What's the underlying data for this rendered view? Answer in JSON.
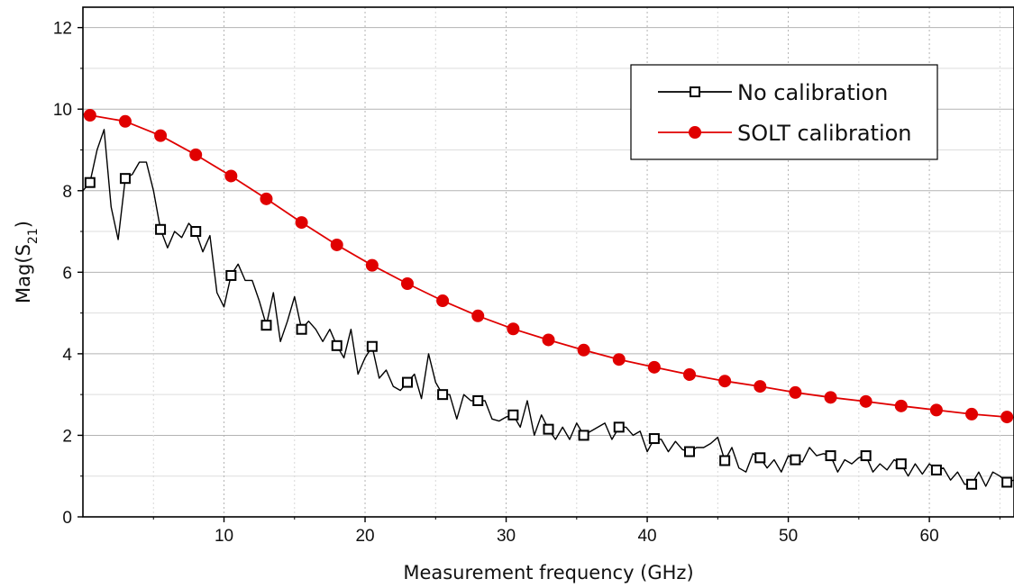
{
  "chart_data": {
    "type": "line",
    "xlabel": "Measurement frequency (GHz)",
    "ylabel": {
      "text": "Mag(S",
      "sub": "21",
      "close": ")"
    },
    "xlim": [
      0,
      66
    ],
    "ylim": [
      0,
      12.5
    ],
    "x_ticks": [
      10,
      20,
      30,
      40,
      50,
      60
    ],
    "y_ticks": [
      0,
      2,
      4,
      6,
      8,
      10,
      12
    ],
    "grid": true,
    "legend_position": "top-right",
    "series": [
      {
        "name": "No calibration",
        "color": "#000000",
        "marker": "open-square",
        "markers": [
          [
            0.5,
            8.2
          ],
          [
            3.0,
            8.3
          ],
          [
            5.5,
            7.05
          ],
          [
            8.0,
            7.0
          ],
          [
            10.5,
            5.92
          ],
          [
            13.0,
            4.7
          ],
          [
            15.5,
            4.6
          ],
          [
            18.0,
            4.2
          ],
          [
            20.5,
            4.18
          ],
          [
            23.0,
            3.3
          ],
          [
            25.5,
            3.0
          ],
          [
            28.0,
            2.85
          ],
          [
            30.5,
            2.5
          ],
          [
            33.0,
            2.15
          ],
          [
            35.5,
            2.0
          ],
          [
            38.0,
            2.2
          ],
          [
            40.5,
            1.92
          ],
          [
            43.0,
            1.6
          ],
          [
            45.5,
            1.38
          ],
          [
            48.0,
            1.45
          ],
          [
            50.5,
            1.4
          ],
          [
            53.0,
            1.5
          ],
          [
            55.5,
            1.5
          ],
          [
            58.0,
            1.3
          ],
          [
            60.5,
            1.15
          ],
          [
            63.0,
            0.8
          ],
          [
            65.5,
            0.85
          ]
        ],
        "values": [
          [
            0.0,
            8.0
          ],
          [
            0.5,
            8.2
          ],
          [
            1.0,
            9.0
          ],
          [
            1.5,
            9.5
          ],
          [
            2.0,
            7.6
          ],
          [
            2.5,
            6.8
          ],
          [
            3.0,
            8.3
          ],
          [
            3.5,
            8.4
          ],
          [
            4.0,
            8.7
          ],
          [
            4.5,
            8.7
          ],
          [
            5.0,
            8.0
          ],
          [
            5.5,
            7.05
          ],
          [
            6.0,
            6.6
          ],
          [
            6.5,
            7.0
          ],
          [
            7.0,
            6.85
          ],
          [
            7.5,
            7.2
          ],
          [
            8.0,
            7.0
          ],
          [
            8.5,
            6.5
          ],
          [
            9.0,
            6.9
          ],
          [
            9.5,
            5.5
          ],
          [
            10.0,
            5.15
          ],
          [
            10.5,
            5.92
          ],
          [
            11.0,
            6.2
          ],
          [
            11.5,
            5.8
          ],
          [
            12.0,
            5.8
          ],
          [
            12.5,
            5.3
          ],
          [
            13.0,
            4.7
          ],
          [
            13.5,
            5.5
          ],
          [
            14.0,
            4.3
          ],
          [
            14.5,
            4.8
          ],
          [
            15.0,
            5.4
          ],
          [
            15.5,
            4.6
          ],
          [
            16.0,
            4.8
          ],
          [
            16.5,
            4.6
          ],
          [
            17.0,
            4.3
          ],
          [
            17.5,
            4.6
          ],
          [
            18.0,
            4.2
          ],
          [
            18.5,
            3.9
          ],
          [
            19.0,
            4.6
          ],
          [
            19.5,
            3.5
          ],
          [
            20.0,
            3.9
          ],
          [
            20.5,
            4.18
          ],
          [
            21.0,
            3.4
          ],
          [
            21.5,
            3.6
          ],
          [
            22.0,
            3.2
          ],
          [
            22.5,
            3.1
          ],
          [
            23.0,
            3.3
          ],
          [
            23.5,
            3.5
          ],
          [
            24.0,
            2.9
          ],
          [
            24.5,
            4.0
          ],
          [
            25.0,
            3.3
          ],
          [
            25.5,
            3.0
          ],
          [
            26.0,
            3.0
          ],
          [
            26.5,
            2.4
          ],
          [
            27.0,
            3.0
          ],
          [
            27.5,
            2.85
          ],
          [
            28.0,
            2.85
          ],
          [
            28.5,
            2.85
          ],
          [
            29.0,
            2.4
          ],
          [
            29.5,
            2.35
          ],
          [
            30.0,
            2.45
          ],
          [
            30.5,
            2.5
          ],
          [
            31.0,
            2.2
          ],
          [
            31.5,
            2.85
          ],
          [
            32.0,
            2.0
          ],
          [
            32.5,
            2.5
          ],
          [
            33.0,
            2.15
          ],
          [
            33.5,
            1.9
          ],
          [
            34.0,
            2.2
          ],
          [
            34.5,
            1.9
          ],
          [
            35.0,
            2.3
          ],
          [
            35.5,
            2.0
          ],
          [
            36.0,
            2.1
          ],
          [
            36.5,
            2.2
          ],
          [
            37.0,
            2.3
          ],
          [
            37.5,
            1.9
          ],
          [
            38.0,
            2.2
          ],
          [
            38.5,
            2.2
          ],
          [
            39.0,
            2.0
          ],
          [
            39.5,
            2.1
          ],
          [
            40.0,
            1.6
          ],
          [
            40.5,
            1.92
          ],
          [
            41.0,
            1.9
          ],
          [
            41.5,
            1.6
          ],
          [
            42.0,
            1.85
          ],
          [
            42.5,
            1.65
          ],
          [
            43.0,
            1.6
          ],
          [
            43.5,
            1.7
          ],
          [
            44.0,
            1.7
          ],
          [
            44.5,
            1.8
          ],
          [
            45.0,
            1.95
          ],
          [
            45.5,
            1.38
          ],
          [
            46.0,
            1.7
          ],
          [
            46.5,
            1.2
          ],
          [
            47.0,
            1.1
          ],
          [
            47.5,
            1.55
          ],
          [
            48.0,
            1.45
          ],
          [
            48.5,
            1.2
          ],
          [
            49.0,
            1.4
          ],
          [
            49.5,
            1.1
          ],
          [
            50.0,
            1.5
          ],
          [
            50.5,
            1.4
          ],
          [
            51.0,
            1.35
          ],
          [
            51.5,
            1.7
          ],
          [
            52.0,
            1.5
          ],
          [
            52.5,
            1.55
          ],
          [
            53.0,
            1.5
          ],
          [
            53.5,
            1.1
          ],
          [
            54.0,
            1.4
          ],
          [
            54.5,
            1.3
          ],
          [
            55.0,
            1.45
          ],
          [
            55.5,
            1.5
          ],
          [
            56.0,
            1.1
          ],
          [
            56.5,
            1.3
          ],
          [
            57.0,
            1.15
          ],
          [
            57.5,
            1.4
          ],
          [
            58.0,
            1.3
          ],
          [
            58.5,
            1.0
          ],
          [
            59.0,
            1.3
          ],
          [
            59.5,
            1.05
          ],
          [
            60.0,
            1.3
          ],
          [
            60.5,
            1.15
          ],
          [
            61.0,
            1.2
          ],
          [
            61.5,
            0.9
          ],
          [
            62.0,
            1.1
          ],
          [
            62.5,
            0.8
          ],
          [
            63.0,
            0.8
          ],
          [
            63.5,
            1.1
          ],
          [
            64.0,
            0.75
          ],
          [
            64.5,
            1.1
          ],
          [
            65.0,
            1.0
          ],
          [
            65.5,
            0.85
          ],
          [
            66.0,
            0.9
          ]
        ]
      },
      {
        "name": "SOLT calibration",
        "color": "#e00000",
        "marker": "filled-circle",
        "markers": [
          [
            0.5,
            9.85
          ],
          [
            3.0,
            9.7
          ],
          [
            5.5,
            9.35
          ],
          [
            8.0,
            8.88
          ],
          [
            10.5,
            8.36
          ],
          [
            13.0,
            7.8
          ],
          [
            15.5,
            7.22
          ],
          [
            18.0,
            6.67
          ],
          [
            20.5,
            6.17
          ],
          [
            23.0,
            5.72
          ],
          [
            25.5,
            5.3
          ],
          [
            28.0,
            4.93
          ],
          [
            30.5,
            4.61
          ],
          [
            33.0,
            4.34
          ],
          [
            35.5,
            4.09
          ],
          [
            38.0,
            3.86
          ],
          [
            40.5,
            3.67
          ],
          [
            43.0,
            3.49
          ],
          [
            45.5,
            3.33
          ],
          [
            48.0,
            3.2
          ],
          [
            50.5,
            3.05
          ],
          [
            53.0,
            2.93
          ],
          [
            55.5,
            2.83
          ],
          [
            58.0,
            2.72
          ],
          [
            60.5,
            2.62
          ],
          [
            63.0,
            2.52
          ],
          [
            65.5,
            2.45
          ]
        ],
        "values": [
          [
            0.0,
            9.87
          ],
          [
            0.5,
            9.85
          ],
          [
            3.0,
            9.7
          ],
          [
            5.5,
            9.35
          ],
          [
            8.0,
            8.88
          ],
          [
            10.5,
            8.36
          ],
          [
            13.0,
            7.8
          ],
          [
            15.5,
            7.22
          ],
          [
            18.0,
            6.67
          ],
          [
            20.5,
            6.17
          ],
          [
            23.0,
            5.72
          ],
          [
            25.5,
            5.3
          ],
          [
            28.0,
            4.93
          ],
          [
            30.5,
            4.61
          ],
          [
            33.0,
            4.34
          ],
          [
            35.5,
            4.09
          ],
          [
            38.0,
            3.86
          ],
          [
            40.5,
            3.67
          ],
          [
            43.0,
            3.49
          ],
          [
            45.5,
            3.33
          ],
          [
            48.0,
            3.2
          ],
          [
            50.5,
            3.05
          ],
          [
            53.0,
            2.93
          ],
          [
            55.5,
            2.83
          ],
          [
            58.0,
            2.72
          ],
          [
            60.5,
            2.62
          ],
          [
            63.0,
            2.52
          ],
          [
            65.5,
            2.45
          ],
          [
            66.0,
            2.44
          ]
        ]
      }
    ]
  }
}
